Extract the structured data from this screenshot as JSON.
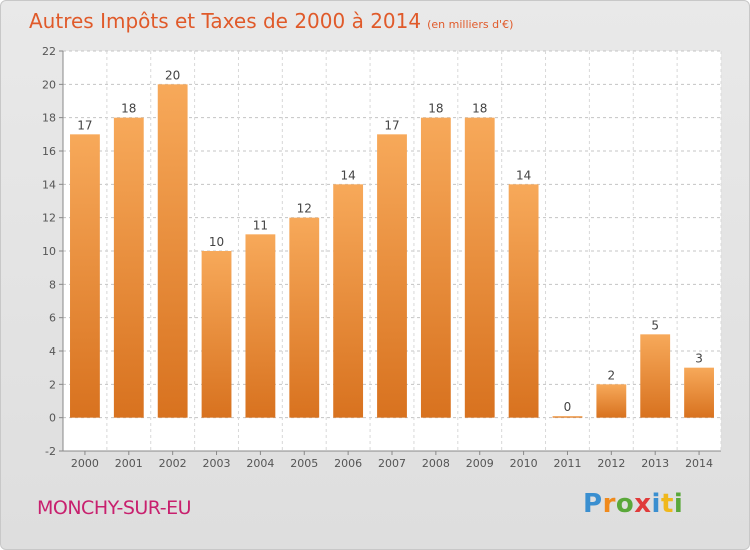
{
  "title": {
    "main": "Autres Impôts et Taxes de 2000 à 2014",
    "unit": "(en milliers d'€)"
  },
  "city": "MONCHY-SUR-EU",
  "logo": {
    "text": "Proxiti",
    "letters": [
      {
        "ch": "P",
        "color": "#3a8fd0"
      },
      {
        "ch": "r",
        "color": "#f08a1c"
      },
      {
        "ch": "o",
        "color": "#5aa83a"
      },
      {
        "ch": "x",
        "color": "#e03a3a"
      },
      {
        "ch": "i",
        "color": "#3a8fd0"
      },
      {
        "ch": "t",
        "color": "#f0b81c"
      },
      {
        "ch": "i",
        "color": "#5aa83a"
      }
    ]
  },
  "colors": {
    "bar_light": "#f7a95a",
    "bar_dark": "#d8721f",
    "title": "#e05a2a",
    "city": "#c8206e"
  },
  "chart_data": {
    "type": "bar",
    "categories": [
      "2000",
      "2001",
      "2002",
      "2003",
      "2004",
      "2005",
      "2006",
      "2007",
      "2008",
      "2009",
      "2010",
      "2011",
      "2012",
      "2013",
      "2014"
    ],
    "values": [
      17,
      18,
      20,
      10,
      11,
      12,
      14,
      17,
      18,
      18,
      14,
      0,
      2,
      5,
      3
    ],
    "ylim": [
      -2,
      22
    ],
    "yticks": [
      -2,
      0,
      2,
      4,
      6,
      8,
      10,
      12,
      14,
      16,
      18,
      20,
      22
    ],
    "grid": "horizontal dashed"
  }
}
